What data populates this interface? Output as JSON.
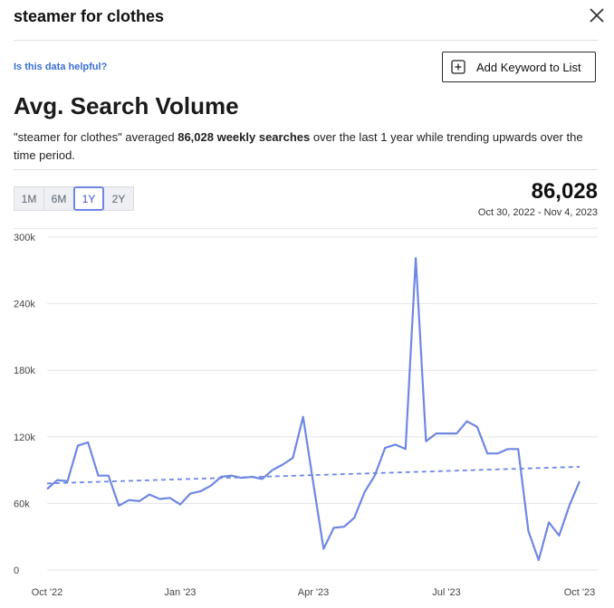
{
  "header": {
    "title": "steamer for clothes",
    "close_icon": "close-icon"
  },
  "helpful_link": "Is this data helpful?",
  "add_button": {
    "label": "Add Keyword to List",
    "icon": "plus-square-icon"
  },
  "section_title": "Avg. Search Volume",
  "description": {
    "part1": "\"steamer for clothes\" averaged ",
    "bold1": "86,028 weekly searches",
    "part2": " over the last 1 year while trending upwards over the time period."
  },
  "range_tabs": [
    {
      "label": "1M",
      "active": false
    },
    {
      "label": "6M",
      "active": false
    },
    {
      "label": "1Y",
      "active": true
    },
    {
      "label": "2Y",
      "active": false
    }
  ],
  "summary": {
    "value": "86,028",
    "date_range": "Oct 30, 2022 - Nov 4, 2023"
  },
  "colors": {
    "line": "#6f87e3",
    "accent": "#3b55c7",
    "link": "#3b6fd8"
  },
  "chart_data": {
    "type": "line",
    "title": "",
    "xlabel": "",
    "ylabel": "",
    "ylim": [
      0,
      300000
    ],
    "y_ticks": [
      "0",
      "60k",
      "120k",
      "180k",
      "240k",
      "300k"
    ],
    "y_tick_values": [
      0,
      60000,
      120000,
      180000,
      240000,
      300000
    ],
    "x_ticks": [
      "Oct '22",
      "Jan '23",
      "Apr '23",
      "Jul '23",
      "Oct '23"
    ],
    "grid": true,
    "series": [
      {
        "values": [
          73000,
          81000,
          80000,
          112000,
          115000,
          85000,
          85000,
          58000,
          63000,
          62000,
          68000,
          64000,
          65000,
          59000,
          69000,
          71000,
          76000,
          84000,
          85000,
          83000,
          84000,
          82000,
          90000,
          95000,
          101000,
          138000,
          78000,
          19000,
          38000,
          39000,
          47000,
          70000,
          85000,
          110000,
          113000,
          109000,
          281000,
          116000,
          123000,
          123000,
          123000,
          134000,
          129000,
          105000,
          105000,
          109000,
          109000,
          35000,
          9000,
          43000,
          31000,
          58000,
          80000
        ]
      }
    ],
    "trend": {
      "start": 78000,
      "end": 93000
    }
  }
}
